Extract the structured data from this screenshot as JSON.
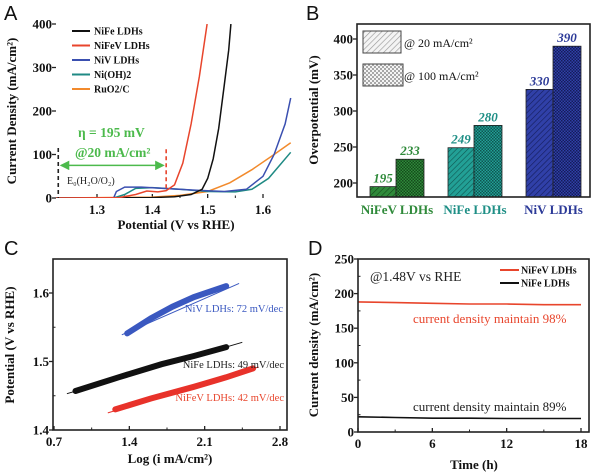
{
  "chart_data": [
    {
      "panel": "A",
      "type": "line",
      "title": "",
      "xlabel": "Potential (V vs RHE)",
      "ylabel": "Current Density (mA/cm²)",
      "xlim": [
        1.225,
        1.65
      ],
      "ylim": [
        0,
        400
      ],
      "xticks": [
        1.3,
        1.4,
        1.5,
        1.6
      ],
      "xtick_labels": [
        "1.3",
        "1.4",
        "1.5",
        "1.6"
      ],
      "yticks": [
        0,
        100,
        200,
        300,
        400
      ],
      "ytick_labels": [
        "0",
        "100",
        "200",
        "300",
        "400"
      ],
      "legend_position": "top-left",
      "series": [
        {
          "name": "NiFe LDHs",
          "color": "#111111",
          "points": [
            [
              1.225,
              0
            ],
            [
              1.4,
              1
            ],
            [
              1.44,
              3
            ],
            [
              1.47,
              8
            ],
            [
              1.49,
              20
            ],
            [
              1.5,
              45
            ],
            [
              1.51,
              90
            ],
            [
              1.52,
              160
            ],
            [
              1.53,
              260
            ],
            [
              1.538,
              340
            ],
            [
              1.542,
              400
            ]
          ]
        },
        {
          "name": "NiFeV LDHs",
          "color": "#e8452c",
          "points": [
            [
              1.225,
              0
            ],
            [
              1.34,
              1
            ],
            [
              1.37,
              8
            ],
            [
              1.39,
              16
            ],
            [
              1.41,
              14
            ],
            [
              1.425,
              17
            ],
            [
              1.44,
              30
            ],
            [
              1.455,
              80
            ],
            [
              1.47,
              170
            ],
            [
              1.485,
              280
            ],
            [
              1.499,
              400
            ]
          ]
        },
        {
          "name": "NiV LDHs",
          "color": "#3a4fb0",
          "points": [
            [
              1.225,
              0
            ],
            [
              1.33,
              0
            ],
            [
              1.335,
              15
            ],
            [
              1.35,
              25
            ],
            [
              1.38,
              25
            ],
            [
              1.42,
              22
            ],
            [
              1.48,
              18
            ],
            [
              1.53,
              15
            ],
            [
              1.57,
              20
            ],
            [
              1.6,
              50
            ],
            [
              1.62,
              100
            ],
            [
              1.64,
              170
            ],
            [
              1.65,
              230
            ]
          ]
        },
        {
          "name": "Ni(OH)2",
          "color": "#1f8a84",
          "points": [
            [
              1.225,
              0
            ],
            [
              1.33,
              0
            ],
            [
              1.35,
              8
            ],
            [
              1.37,
              22
            ],
            [
              1.4,
              24
            ],
            [
              1.45,
              20
            ],
            [
              1.5,
              15
            ],
            [
              1.55,
              14
            ],
            [
              1.58,
              20
            ],
            [
              1.61,
              45
            ],
            [
              1.63,
              75
            ],
            [
              1.65,
              105
            ]
          ]
        },
        {
          "name": "RuO2/C",
          "color": "#f28a2c",
          "points": [
            [
              1.225,
              0
            ],
            [
              1.4,
              2
            ],
            [
              1.45,
              6
            ],
            [
              1.5,
              15
            ],
            [
              1.54,
              35
            ],
            [
              1.58,
              65
            ],
            [
              1.62,
              100
            ],
            [
              1.65,
              127
            ]
          ]
        }
      ],
      "annotations": {
        "eta_text": "η = 195 mV",
        "current_text": "@20 mA/cm²",
        "e0_label": "E₀(H₂O/O₂)",
        "e0_potential": 1.23,
        "eta_potential": 1.425,
        "arrow_level": 75,
        "annotation_color": "#4cba4c"
      }
    },
    {
      "panel": "B",
      "type": "bar",
      "title": "",
      "xlabel": "",
      "ylabel": "Overpotential (mV)",
      "ylim": [
        180,
        420
      ],
      "yticks": [
        200,
        250,
        300,
        350,
        400
      ],
      "ytick_labels": [
        "200",
        "250",
        "300",
        "350",
        "400"
      ],
      "categories": [
        "NiFeV LDHs",
        "NiFe LDHs",
        "NiV LDHs"
      ],
      "category_colors": [
        "#2f8a3a",
        "#1f8f86",
        "#2c3a98"
      ],
      "legend_position": "top-left",
      "series": [
        {
          "name": "@ 20 mA/cm²",
          "pattern": "hatched",
          "values": [
            195,
            249,
            330
          ]
        },
        {
          "name": "@ 100 mA/cm²",
          "pattern": "checkered",
          "values": [
            233,
            280,
            390
          ]
        }
      ],
      "data_labels": [
        [
          "195",
          "249",
          "330"
        ],
        [
          "233",
          "280",
          "390"
        ]
      ]
    },
    {
      "panel": "C",
      "type": "line",
      "title": "",
      "xlabel": "Log (i mA/cm²)",
      "ylabel": "Potential (V vs RHE)",
      "xlim": [
        0.7,
        2.87
      ],
      "ylim": [
        1.4,
        1.65
      ],
      "xticks": [
        0.7,
        1.4,
        2.1,
        2.8
      ],
      "xtick_labels": [
        "0.7",
        "1.4",
        "2.1",
        "2.8"
      ],
      "yticks": [
        1.4,
        1.5,
        1.6
      ],
      "ytick_labels": [
        "1.4",
        "1.5",
        "1.6"
      ],
      "series": [
        {
          "name": "NiV LDHs",
          "label": "NiV LDHs: 72 mV/dec",
          "slope_mV_per_dec": 72,
          "color": "#3a58c0",
          "data": [
            [
              1.38,
              1.541
            ],
            [
              1.6,
              1.563
            ],
            [
              1.8,
              1.58
            ],
            [
              2.0,
              1.594
            ],
            [
              2.3,
              1.61
            ]
          ],
          "fit": [
            [
              1.33,
              1.539
            ],
            [
              2.42,
              1.614
            ]
          ]
        },
        {
          "name": "NiFe LDHs",
          "label": "NiFe LDHs: 49 mV/dec",
          "slope_mV_per_dec": 49,
          "color": "#111111",
          "data": [
            [
              0.9,
              1.457
            ],
            [
              1.3,
              1.477
            ],
            [
              1.7,
              1.496
            ],
            [
              2.0,
              1.508
            ],
            [
              2.3,
              1.521
            ]
          ],
          "fit": [
            [
              0.82,
              1.453
            ],
            [
              2.45,
              1.528
            ]
          ]
        },
        {
          "name": "NiFeV LDHs",
          "label": "NiFeV LDHs: 42 mV/dec",
          "slope_mV_per_dec": 42,
          "color": "#e8322a",
          "data": [
            [
              1.27,
              1.43
            ],
            [
              1.6,
              1.446
            ],
            [
              2.0,
              1.463
            ],
            [
              2.3,
              1.477
            ],
            [
              2.55,
              1.49
            ]
          ],
          "fit": [
            [
              1.2,
              1.425
            ],
            [
              2.6,
              1.492
            ]
          ]
        }
      ]
    },
    {
      "panel": "D",
      "type": "line",
      "title": "",
      "xlabel": "Time (h)",
      "ylabel": "Current density (mA/cm²)",
      "xlim": [
        0,
        18.2
      ],
      "ylim": [
        0,
        250
      ],
      "xticks": [
        0,
        6,
        12,
        18
      ],
      "xtick_labels": [
        "0",
        "6",
        "12",
        "18"
      ],
      "yticks": [
        0,
        50,
        100,
        150,
        200,
        250
      ],
      "ytick_labels": [
        "0",
        "50",
        "100",
        "150",
        "200",
        "250"
      ],
      "legend_position": "top-right",
      "condition_text": "@1.48V vs RHE",
      "series": [
        {
          "name": "NiFeV LDHs",
          "color": "#e8452c",
          "points": [
            [
              0,
              188
            ],
            [
              3,
              187
            ],
            [
              6,
              186
            ],
            [
              9,
              185
            ],
            [
              12,
              185
            ],
            [
              15,
              184
            ],
            [
              18,
              184
            ]
          ],
          "annotation": "current density maintain 98%"
        },
        {
          "name": "NiFe LDHs",
          "color": "#111111",
          "points": [
            [
              0,
              22
            ],
            [
              3,
              21
            ],
            [
              6,
              20
            ],
            [
              9,
              20
            ],
            [
              12,
              19.5
            ],
            [
              15,
              19.5
            ],
            [
              18,
              19.5
            ]
          ],
          "annotation": "current density maintain 89%"
        }
      ]
    }
  ]
}
